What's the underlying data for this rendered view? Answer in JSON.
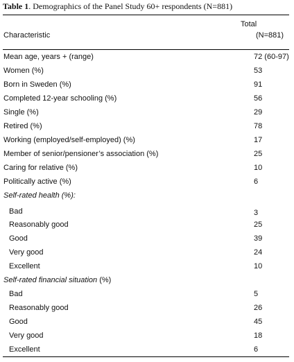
{
  "table": {
    "title_bold": "Table 1",
    "title_rest": ". Demographics of the Panel Study 60+ respondents (N=881)",
    "header": {
      "characteristic": "Characteristic",
      "total": "Total",
      "n": "(N=881)"
    },
    "rows": [
      {
        "label": "Mean age, years + (range)",
        "value": "72 (60-97)"
      },
      {
        "label": "Women (%)",
        "value": "53"
      },
      {
        "label": "Born in Sweden (%)",
        "value": "91"
      },
      {
        "label": "Completed 12-year schooling (%)",
        "value": "56"
      },
      {
        "label": "Single (%)",
        "value": "29"
      },
      {
        "label": "Retired (%)",
        "value": "78"
      },
      {
        "label": "Working (employed/self-employed) (%)",
        "value": "17"
      },
      {
        "label": "Member of senior/pensioner’s association (%)",
        "value": "25"
      },
      {
        "label": "Caring for relative (%)",
        "value": "10"
      },
      {
        "label": "Politically active (%)",
        "value": "6"
      }
    ],
    "health": {
      "heading": "Self-rated health (%):",
      "items": [
        {
          "label": "Bad",
          "value": "3"
        },
        {
          "label": "Reasonably good",
          "value": "25"
        },
        {
          "label": "Good",
          "value": "39"
        },
        {
          "label": "Very good",
          "value": "24"
        },
        {
          "label": "Excellent",
          "value": "10"
        }
      ]
    },
    "financial": {
      "heading": "Self-rated financial situation",
      "heading_suffix": " (%)",
      "items": [
        {
          "label": "Bad",
          "value": "5"
        },
        {
          "label": "Reasonably good",
          "value": "26"
        },
        {
          "label": "Good",
          "value": "45"
        },
        {
          "label": "Very good",
          "value": "18"
        },
        {
          "label": "Excellent",
          "value": "6"
        }
      ]
    }
  }
}
